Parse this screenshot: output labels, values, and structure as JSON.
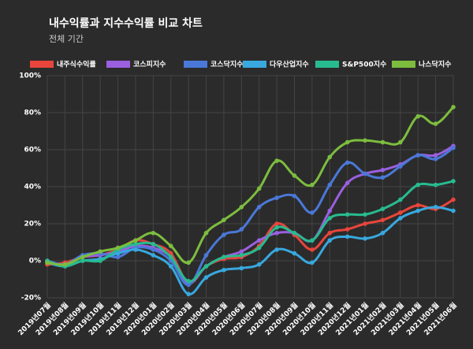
{
  "chart_data": {
    "type": "line",
    "title": "내수익률과 지수수익률 비교 차트",
    "subtitle": "전체 기간",
    "categories": [
      "2019년07월",
      "2019년08월",
      "2019년09월",
      "2019년10월",
      "2019년11월",
      "2019년12월",
      "2020년01월",
      "2020년02월",
      "2020년03월",
      "2020년04월",
      "2020년05월",
      "2020년06월",
      "2020년07월",
      "2020년08월",
      "2020년09월",
      "2020년10월",
      "2020년11월",
      "2020년12월",
      "2021년01월",
      "2021년02월",
      "2021년03월",
      "2021년04월",
      "2021년05월",
      "2021년06월"
    ],
    "series": [
      {
        "name": "내주식수익률",
        "color": "#e8453c",
        "values": [
          -2,
          -1,
          2,
          3,
          6,
          11,
          9,
          4,
          -12,
          -3,
          1,
          2,
          8,
          20,
          14,
          6,
          15,
          17,
          20,
          22,
          26,
          30,
          28,
          33
        ]
      },
      {
        "name": "코스피지수",
        "color": "#9b5fe0",
        "values": [
          0,
          -2,
          2,
          3,
          5,
          8,
          7,
          2,
          -12,
          -3,
          2,
          5,
          11,
          15,
          15,
          11,
          27,
          42,
          47,
          49,
          52,
          57,
          57,
          62
        ]
      },
      {
        "name": "코스닥지수",
        "color": "#4a78d8",
        "values": [
          0,
          -2,
          3,
          4,
          2,
          7,
          6,
          0,
          -13,
          3,
          14,
          17,
          29,
          34,
          35,
          26,
          41,
          53,
          47,
          45,
          51,
          57,
          55,
          61
        ]
      },
      {
        "name": "다우산업지수",
        "color": "#38a8df",
        "values": [
          -1,
          -3,
          0,
          1,
          4,
          6,
          3,
          -3,
          -18,
          -9,
          -5,
          -4,
          -2,
          6,
          4,
          -1,
          11,
          13,
          12,
          15,
          23,
          27,
          29,
          27
        ]
      },
      {
        "name": "S&P500지수",
        "color": "#27bb8f",
        "values": [
          0,
          -3,
          0,
          0,
          6,
          9,
          9,
          2,
          -11,
          -3,
          2,
          3,
          7,
          18,
          15,
          11,
          23,
          25,
          25,
          28,
          33,
          41,
          41,
          43
        ]
      },
      {
        "name": "나스닥지수",
        "color": "#7dbd3e",
        "values": [
          -1,
          -2,
          2,
          5,
          7,
          11,
          15,
          8,
          -1,
          15,
          22,
          29,
          39,
          54,
          46,
          41,
          56,
          64,
          65,
          64,
          64,
          78,
          74,
          83
        ]
      }
    ],
    "ylim": [
      -20,
      100
    ],
    "yticks": [
      {
        "value": -20,
        "label": "-20%"
      },
      {
        "value": 0,
        "label": "0%"
      },
      {
        "value": 20,
        "label": "20%"
      },
      {
        "value": 40,
        "label": "40%"
      },
      {
        "value": 60,
        "label": "60%"
      },
      {
        "value": 80,
        "label": "80%"
      },
      {
        "value": 100,
        "label": "100%"
      }
    ],
    "grid": true
  }
}
